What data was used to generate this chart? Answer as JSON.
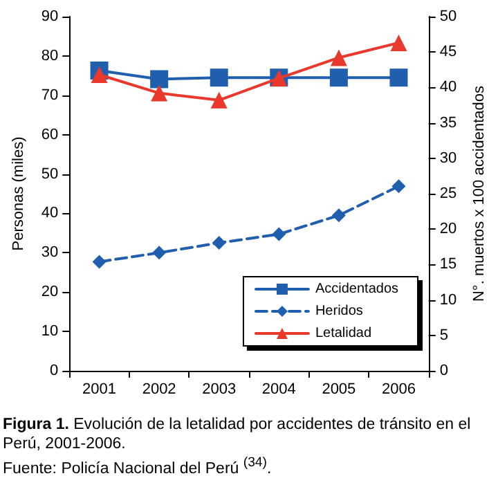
{
  "chart_data": {
    "type": "line",
    "categories": [
      "2001",
      "2002",
      "2003",
      "2004",
      "2005",
      "2006"
    ],
    "series": [
      {
        "name": "Accidentados",
        "color": "#1f5fad",
        "marker": "square",
        "line_style": "solid",
        "values": [
          76.3,
          74.1,
          74.5,
          74.5,
          74.5,
          74.5
        ]
      },
      {
        "name": "Heridos",
        "color": "#1f5fad",
        "marker": "diamond",
        "line_style": "dashed",
        "values": [
          27.7,
          30.0,
          32.5,
          34.7,
          39.5,
          46.9
        ]
      },
      {
        "name": "Letalidad",
        "color": "#e8392c",
        "marker": "triangle",
        "line_style": "solid",
        "axis": "y2",
        "values": [
          41.8,
          39.2,
          38.2,
          41.3,
          44.2,
          46.3
        ]
      }
    ],
    "ylabel": "Personas (miles)",
    "y2label": "N°. muertos x 100 accidentados",
    "ylim": [
      0,
      90
    ],
    "yticks": [
      0,
      10,
      20,
      30,
      40,
      50,
      60,
      70,
      80,
      90
    ],
    "y2lim": [
      0,
      50
    ],
    "y2ticks": [
      0,
      5,
      10,
      15,
      20,
      25,
      30,
      35,
      40,
      45,
      50
    ],
    "legend": "bottom right",
    "grid": false,
    "annotations": [
      "Figura 1. Evolución de la letalidad por accidentes de tránsito en el Perú, 2001-2006.",
      "Fuente: Policía Nacional del Perú $^{(34)}$."
    ]
  }
}
